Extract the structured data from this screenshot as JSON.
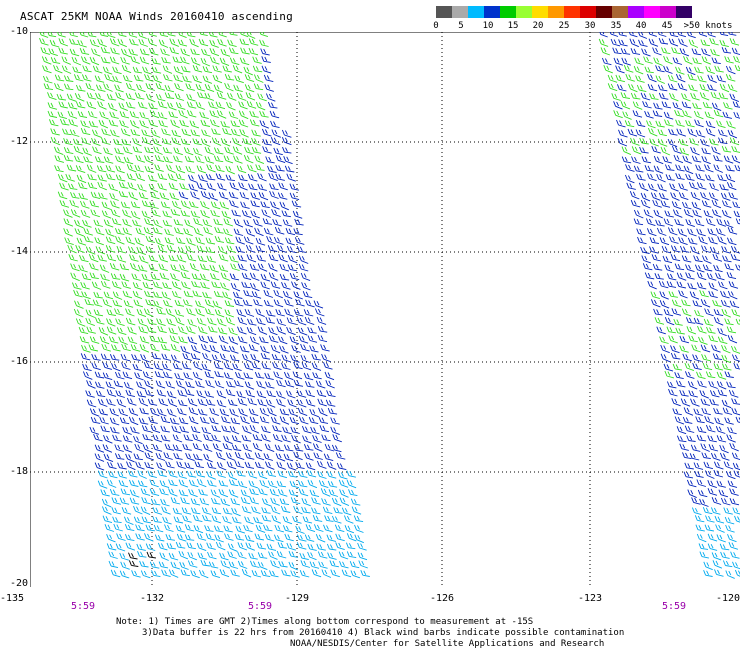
{
  "title": "ASCAT 25KM NOAA Winds 20160410 ascending",
  "legend": {
    "colors": [
      "#555555",
      "#aaaaaa",
      "#00bbff",
      "#0033cc",
      "#00cc00",
      "#99ff33",
      "#ffdd00",
      "#ff9900",
      "#ff3300",
      "#dd0000",
      "#660000",
      "#aa6633",
      "#aa00ff",
      "#ff00ff",
      "#cc00cc",
      "#330066"
    ],
    "ticks": [
      "0",
      "5",
      "10",
      "15",
      "20",
      "25",
      "30",
      "35",
      "40",
      "45",
      ">50 knots"
    ]
  },
  "map": {
    "lat_labels": [
      "-10",
      "-12",
      "-14",
      "-16",
      "-18",
      "-20"
    ],
    "lon_labels": [
      "-135",
      "-132",
      "-129",
      "-126",
      "-123",
      "-120"
    ],
    "time_labels": [
      "5:59",
      "5:59",
      "5:59"
    ],
    "swath_colors": {
      "green": "#33dd22",
      "blue": "#0022bb",
      "cyan": "#00aaee",
      "black": "#000000"
    }
  },
  "notes": {
    "line1": "Note: 1) Times are GMT 2)Times along bottom correspond to measurement at -15S",
    "line2": "3)Data buffer is 22 hrs from 20160410 4) Black wind barbs indicate possible contamination",
    "line3": "NOAA/NESDIS/Center for Satellite Applications and Research"
  }
}
